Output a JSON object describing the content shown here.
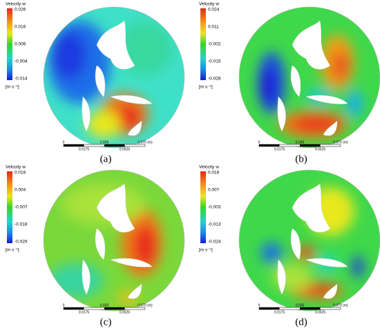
{
  "panels": [
    {
      "label": "(a)",
      "legend": {
        "title": "Velocity w",
        "ticks": [
          "0.026",
          "0.016",
          "0.006",
          "-0.004",
          "-0.014"
        ],
        "unit": "[m s⁻¹]"
      },
      "scale": {
        "top": [
          "0",
          "0.035",
          "0.070 (m)"
        ],
        "bottom": [
          "0.0175",
          "0.0525"
        ]
      }
    },
    {
      "label": "(b)",
      "legend": {
        "title": "Velocity w",
        "ticks": [
          "0.024",
          "0.011",
          "-0.002",
          "-0.015",
          "-0.028"
        ],
        "unit": "[m s⁻¹]"
      },
      "scale": {
        "top": [
          "0",
          "0.035",
          "0.070 (m)"
        ],
        "bottom": [
          "0.0175",
          "0.0525"
        ]
      }
    },
    {
      "label": "(c)",
      "legend": {
        "title": "Velocity w",
        "ticks": [
          "0.016",
          "0.004",
          "-0.007",
          "-0.018",
          "-0.029"
        ],
        "unit": "[m s⁻¹]"
      },
      "scale": {
        "top": [
          "0",
          "0.035",
          "0.070 (m)"
        ],
        "bottom": [
          "0.0175",
          "0.0525"
        ]
      }
    },
    {
      "label": "(d)",
      "legend": {
        "title": "Velocity w",
        "ticks": [
          "0.018",
          "0.007",
          "-0.003",
          "-0.013",
          "-0.024"
        ],
        "unit": "[m s⁻¹]"
      },
      "scale": {
        "top": [
          "0",
          "0.035",
          "0.070 (m)"
        ],
        "bottom": [
          "0.0175",
          "0.0525"
        ]
      }
    }
  ]
}
